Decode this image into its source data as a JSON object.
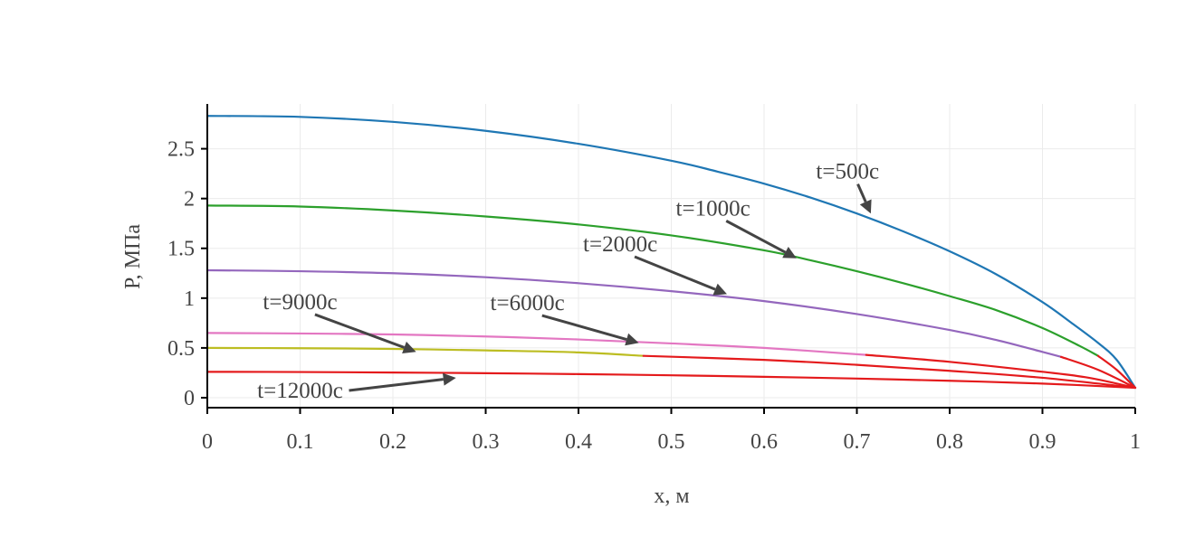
{
  "chart_data": {
    "type": "line",
    "title": "",
    "xlabel": "x, м",
    "ylabel": "P, МПа",
    "xlim": [
      0,
      1
    ],
    "ylim": [
      -0.1,
      2.95
    ],
    "x_ticks": [
      0,
      0.1,
      0.2,
      0.3,
      0.4,
      0.5,
      0.6,
      0.7,
      0.8,
      0.9,
      1
    ],
    "x_tick_labels": [
      "0",
      "0.1",
      "0.2",
      "0.3",
      "0.4",
      "0.5",
      "0.6",
      "0.7",
      "0.8",
      "0.9",
      "1"
    ],
    "y_ticks": [
      0,
      0.5,
      1,
      1.5,
      2,
      2.5
    ],
    "y_tick_labels": [
      "0",
      "0.5",
      "1",
      "1.5",
      "2",
      "2.5"
    ],
    "grid": true,
    "legend": "none",
    "second_phase_color": "#e41a1c",
    "series": [
      {
        "label": "t=500с",
        "color": "#1f77b4",
        "switch_x": null,
        "x": [
          0,
          0.1,
          0.2,
          0.3,
          0.4,
          0.5,
          0.55,
          0.6,
          0.65,
          0.7,
          0.75,
          0.8,
          0.85,
          0.9,
          0.93,
          0.96,
          0.98,
          1.0
        ],
        "y": [
          2.83,
          2.82,
          2.77,
          2.68,
          2.55,
          2.38,
          2.27,
          2.15,
          2.01,
          1.85,
          1.67,
          1.47,
          1.24,
          0.96,
          0.76,
          0.55,
          0.38,
          0.1
        ]
      },
      {
        "label": "t=1000с",
        "color": "#2ca02c",
        "switch_x": 0.96,
        "x": [
          0,
          0.1,
          0.2,
          0.3,
          0.4,
          0.5,
          0.6,
          0.65,
          0.7,
          0.75,
          0.8,
          0.85,
          0.9,
          0.94,
          0.96,
          0.98,
          1.0
        ],
        "y": [
          1.93,
          1.92,
          1.88,
          1.82,
          1.74,
          1.63,
          1.48,
          1.38,
          1.27,
          1.15,
          1.02,
          0.88,
          0.7,
          0.52,
          0.42,
          0.28,
          0.1
        ]
      },
      {
        "label": "t=2000с",
        "color": "#9467bd",
        "switch_x": 0.92,
        "x": [
          0,
          0.1,
          0.2,
          0.3,
          0.4,
          0.5,
          0.6,
          0.7,
          0.8,
          0.85,
          0.9,
          0.92,
          0.96,
          1.0
        ],
        "y": [
          1.28,
          1.27,
          1.25,
          1.21,
          1.15,
          1.07,
          0.97,
          0.84,
          0.68,
          0.58,
          0.46,
          0.41,
          0.28,
          0.1
        ]
      },
      {
        "label": "t=6000с",
        "color": "#e377c2",
        "switch_x": 0.71,
        "x": [
          0,
          0.1,
          0.2,
          0.3,
          0.4,
          0.5,
          0.6,
          0.71,
          0.8,
          0.9,
          0.95,
          1.0
        ],
        "y": [
          0.65,
          0.645,
          0.635,
          0.615,
          0.585,
          0.545,
          0.5,
          0.43,
          0.36,
          0.26,
          0.2,
          0.1
        ]
      },
      {
        "label": "t=9000с",
        "color": "#bcbd22",
        "switch_x": 0.47,
        "x": [
          0,
          0.1,
          0.2,
          0.3,
          0.4,
          0.47,
          0.6,
          0.7,
          0.8,
          0.9,
          1.0
        ],
        "y": [
          0.5,
          0.497,
          0.49,
          0.475,
          0.455,
          0.42,
          0.38,
          0.33,
          0.27,
          0.2,
          0.1
        ]
      },
      {
        "label": "t=12000с",
        "color": "#e41a1c",
        "switch_x": 0,
        "x": [
          0,
          0.1,
          0.2,
          0.3,
          0.4,
          0.5,
          0.6,
          0.7,
          0.8,
          0.9,
          1.0
        ],
        "y": [
          0.26,
          0.258,
          0.253,
          0.246,
          0.237,
          0.225,
          0.21,
          0.192,
          0.17,
          0.142,
          0.1
        ]
      }
    ],
    "annotations": [
      {
        "text": "t=500с",
        "x": 0.715,
        "y": 1.85,
        "text_x": 0.69,
        "text_y": 2.2
      },
      {
        "text": "t=1000с",
        "x": 0.635,
        "y": 1.4,
        "text_x": 0.545,
        "text_y": 1.83
      },
      {
        "text": "t=2000с",
        "x": 0.56,
        "y": 1.04,
        "text_x": 0.445,
        "text_y": 1.47
      },
      {
        "text": "t=6000с",
        "x": 0.465,
        "y": 0.55,
        "text_x": 0.345,
        "text_y": 0.88
      },
      {
        "text": "t=9000с",
        "x": 0.225,
        "y": 0.46,
        "text_x": 0.1,
        "text_y": 0.89
      },
      {
        "text": "t=12000с",
        "x": 0.268,
        "y": 0.2,
        "text_x": 0.1,
        "text_y": 0.0
      }
    ]
  }
}
